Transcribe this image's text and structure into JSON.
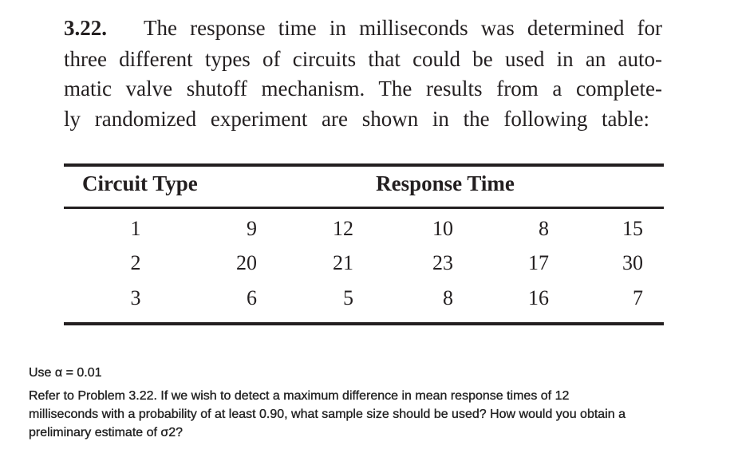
{
  "problem": {
    "number": "3.22.",
    "lines": [
      "The response time in milliseconds was determined for",
      "three different types of circuits that could be used in an auto-",
      "matic valve shutoff mechanism. The results from a complete-",
      "ly randomized experiment are shown in the following table:"
    ]
  },
  "table": {
    "headers": [
      "Circuit Type",
      "Response Time"
    ],
    "rows": [
      [
        1,
        9,
        12,
        10,
        8,
        15
      ],
      [
        2,
        20,
        21,
        23,
        17,
        30
      ],
      [
        3,
        6,
        5,
        8,
        16,
        7
      ]
    ]
  },
  "note": {
    "alpha": "Use α = 0.01",
    "question_lines": [
      "Refer to Problem 3.22. If we wish to detect a maximum difference in mean response times of 12",
      "milliseconds with a probability of at least 0.90, what sample size should be used? How would you obtain a",
      "preliminary estimate of σ2?"
    ]
  }
}
